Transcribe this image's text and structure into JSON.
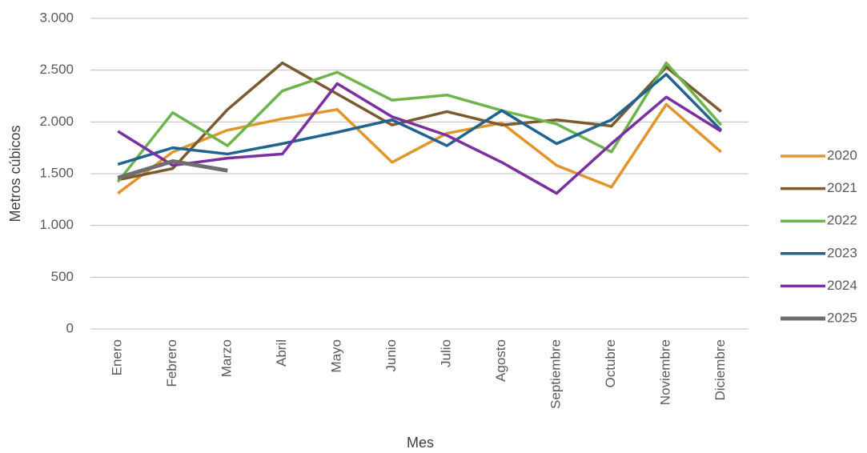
{
  "chart_data": {
    "type": "line",
    "xlabel": "Mes",
    "ylabel": "Metros cúbicos",
    "categories": [
      "Enero",
      "Febrero",
      "Marzo",
      "Abril",
      "Mayo",
      "Junio",
      "Julio",
      "Agosto",
      "Septiembre",
      "Octubre",
      "Noviembre",
      "Diciembre"
    ],
    "series": [
      {
        "name": "2020",
        "color": "#e0962a",
        "values": [
          1310,
          1710,
          1920,
          2030,
          2120,
          1610,
          1890,
          1990,
          1580,
          1370,
          2170,
          1710
        ]
      },
      {
        "name": "2021",
        "color": "#7a5a2e",
        "values": [
          1440,
          1550,
          2120,
          2570,
          2270,
          1970,
          2100,
          1970,
          2020,
          1960,
          2530,
          2100
        ]
      },
      {
        "name": "2022",
        "color": "#6db54a",
        "values": [
          1420,
          2090,
          1770,
          2300,
          2480,
          2210,
          2260,
          2110,
          1980,
          1710,
          2570,
          1970
        ]
      },
      {
        "name": "2023",
        "color": "#1f6391",
        "values": [
          1590,
          1750,
          1690,
          1790,
          1900,
          2020,
          1770,
          2110,
          1790,
          2020,
          2460,
          1920
        ]
      },
      {
        "name": "2024",
        "color": "#7b2fa0",
        "values": [
          1910,
          1580,
          1650,
          1690,
          2370,
          2050,
          1870,
          1610,
          1310,
          1790,
          2240,
          1910
        ]
      },
      {
        "name": "2025",
        "color": "#6e6e6e",
        "values": [
          1460,
          1620,
          1530,
          null,
          null,
          null,
          null,
          null,
          null,
          null,
          null,
          null
        ]
      }
    ],
    "ylim": [
      0,
      3000
    ],
    "yticks": [
      0,
      500,
      {
        "value": 1000,
        "label": "1.000"
      },
      {
        "value": 1500,
        "label": "1.500"
      },
      {
        "value": 2000,
        "label": "2.000"
      },
      {
        "value": 2500,
        "label": "2.500"
      },
      {
        "value": 3000,
        "label": "3.000"
      }
    ],
    "grid": true,
    "legend": "right"
  }
}
